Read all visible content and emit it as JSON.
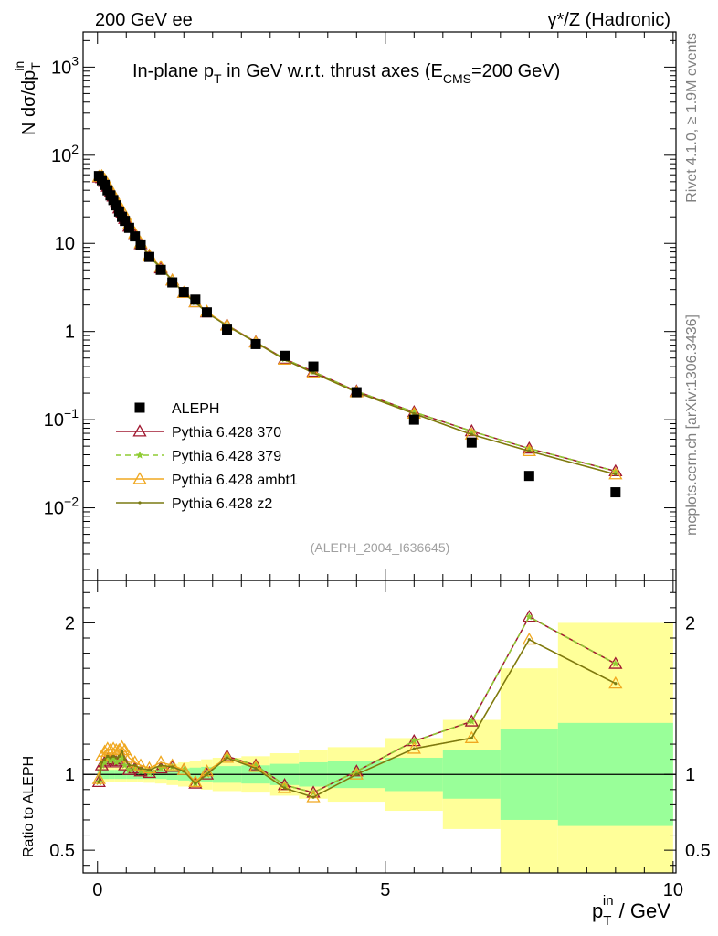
{
  "header": {
    "left_title": "200 GeV ee",
    "right_title": "γ*/Z (Hadronic)"
  },
  "side_labels": {
    "rivet": "Rivet 4.1.0, ≥ 1.9M events",
    "mcplots": "mcplots.cern.ch [arXiv:1306.3436]"
  },
  "chart_data": [
    {
      "id": "main",
      "type": "line",
      "title": "In-plane p_T in GeV w.r.t. thrust axes (E_CMS=200 GeV)",
      "title_parts": {
        "a": "In-plane p",
        "a_sub": "T",
        "b": " in GeV w.r.t. thrust axes (E",
        "b_sub": "CMS",
        "c": "=200 GeV)"
      },
      "ylabel": "N dσ/dp_T^in",
      "ylabel_parts": {
        "main": "N  dσ/dp",
        "sub": "T",
        "sup": "in"
      },
      "yscale": "log",
      "ylim": [
        0.0015,
        2500
      ],
      "xlim": [
        -0.25,
        10.05
      ],
      "yticks": [
        {
          "v": 1000,
          "base": "10",
          "exp": "3"
        },
        {
          "v": 100,
          "base": "10",
          "exp": "2"
        },
        {
          "v": 10,
          "base": "10",
          "exp": ""
        },
        {
          "v": 1,
          "base": "1",
          "exp": ""
        },
        {
          "v": 0.1,
          "base": "10",
          "exp": "−1"
        },
        {
          "v": 0.01,
          "base": "10",
          "exp": "−2"
        }
      ],
      "watermark": "(ALEPH_2004_I636645)",
      "x": [
        0.025,
        0.075,
        0.125,
        0.175,
        0.225,
        0.275,
        0.325,
        0.375,
        0.425,
        0.475,
        0.55,
        0.65,
        0.75,
        0.9,
        1.1,
        1.3,
        1.5,
        1.7,
        1.9,
        2.25,
        2.75,
        3.25,
        3.75,
        4.5,
        5.5,
        6.5,
        7.5,
        9.0
      ],
      "series": [
        {
          "name": "ALEPH",
          "values": [
            58,
            52,
            46,
            40,
            35,
            31,
            27,
            23,
            20,
            18,
            15,
            12,
            9.5,
            7.0,
            5.0,
            3.6,
            2.8,
            2.3,
            1.65,
            1.05,
            0.72,
            0.53,
            0.4,
            0.205,
            0.1,
            0.055,
            0.023,
            0.015
          ],
          "yerr_rel": 0.05
        },
        {
          "name": "Pythia 6.428 370",
          "values": [
            56,
            55,
            50,
            44,
            38,
            34,
            29,
            25,
            22,
            19,
            15.5,
            12.5,
            9.8,
            7.1,
            5.2,
            3.8,
            2.75,
            2.15,
            1.65,
            1.18,
            0.76,
            0.49,
            0.35,
            0.21,
            0.122,
            0.074,
            0.047,
            0.026
          ]
        },
        {
          "name": "Pythia 6.428 379",
          "values": [
            56,
            55,
            50,
            44,
            38,
            34,
            29,
            25,
            22,
            19,
            15.5,
            12.5,
            9.8,
            7.1,
            5.2,
            3.8,
            2.75,
            2.15,
            1.65,
            1.18,
            0.76,
            0.49,
            0.35,
            0.21,
            0.122,
            0.074,
            0.047,
            0.026
          ]
        },
        {
          "name": "Pythia 6.428 ambt1",
          "values": [
            57,
            58,
            53,
            47,
            41,
            36,
            31,
            27,
            24,
            21,
            16.5,
            13.0,
            10.1,
            7.3,
            5.4,
            3.8,
            2.75,
            2.15,
            1.68,
            1.17,
            0.75,
            0.48,
            0.34,
            0.205,
            0.117,
            0.068,
            0.044,
            0.024
          ]
        },
        {
          "name": "Pythia 6.428 z2",
          "values": [
            55,
            56,
            51,
            45,
            39,
            35,
            30,
            26,
            23,
            20,
            16.0,
            12.7,
            9.9,
            7.2,
            5.3,
            3.8,
            2.7,
            2.13,
            1.63,
            1.16,
            0.75,
            0.48,
            0.34,
            0.205,
            0.117,
            0.068,
            0.044,
            0.024
          ]
        }
      ]
    },
    {
      "id": "ratio",
      "type": "line",
      "ylabel": "Ratio to ALEPH",
      "xlabel": "p_T^in / GeV",
      "xlabel_parts": {
        "main": "p",
        "sub": "T",
        "sup": "in",
        "rest": " / GeV"
      },
      "ylim": [
        0.35,
        2.28
      ],
      "xlim": [
        -0.25,
        10.05
      ],
      "yticks": [
        {
          "v": 2,
          "label": "2"
        },
        {
          "v": 1,
          "label": "1"
        },
        {
          "v": 0.5,
          "label": "0.5"
        }
      ],
      "xticks": [
        {
          "v": 0,
          "label": "0"
        },
        {
          "v": 5,
          "label": "5"
        },
        {
          "v": 10,
          "label": "10"
        }
      ],
      "reference_line": 1,
      "bands": {
        "edges": [
          0.0,
          0.1,
          0.2,
          0.3,
          0.4,
          0.5,
          0.6,
          0.7,
          0.8,
          1.0,
          1.2,
          1.4,
          1.6,
          1.8,
          2.0,
          2.5,
          3.0,
          3.5,
          4.0,
          5.0,
          6.0,
          7.0,
          8.0,
          10.0
        ],
        "stat": [
          0.03,
          0.03,
          0.03,
          0.03,
          0.03,
          0.03,
          0.03,
          0.03,
          0.03,
          0.03,
          0.035,
          0.04,
          0.045,
          0.05,
          0.055,
          0.06,
          0.07,
          0.08,
          0.09,
          0.11,
          0.16,
          0.3,
          0.34
        ],
        "total": [
          0.05,
          0.05,
          0.05,
          0.05,
          0.05,
          0.05,
          0.05,
          0.05,
          0.055,
          0.06,
          0.07,
          0.08,
          0.09,
          0.1,
          0.11,
          0.12,
          0.14,
          0.16,
          0.18,
          0.24,
          0.36,
          0.7,
          1.0
        ]
      },
      "series": [
        {
          "name": "Pythia 6.428 370",
          "values": [
            0.95,
            1.06,
            1.08,
            1.1,
            1.09,
            1.1,
            1.08,
            1.09,
            1.11,
            1.06,
            1.03,
            1.04,
            1.02,
            1.01,
            1.04,
            1.05,
            1.03,
            0.94,
            1.0,
            1.12,
            1.06,
            0.93,
            0.88,
            1.02,
            1.22,
            1.35,
            2.04,
            1.73
          ]
        },
        {
          "name": "Pythia 6.428 379",
          "values": [
            0.95,
            1.06,
            1.08,
            1.1,
            1.09,
            1.1,
            1.08,
            1.09,
            1.11,
            1.06,
            1.03,
            1.04,
            1.02,
            1.01,
            1.04,
            1.05,
            1.03,
            0.94,
            1.0,
            1.12,
            1.06,
            0.93,
            0.88,
            1.02,
            1.22,
            1.35,
            2.04,
            1.73
          ]
        },
        {
          "name": "Pythia 6.428 ambt1",
          "values": [
            0.97,
            1.12,
            1.15,
            1.17,
            1.16,
            1.17,
            1.16,
            1.16,
            1.18,
            1.16,
            1.11,
            1.08,
            1.06,
            1.04,
            1.08,
            1.06,
            1.03,
            0.95,
            1.02,
            1.11,
            1.05,
            0.91,
            0.85,
            1.0,
            1.17,
            1.24,
            1.89,
            1.6
          ]
        },
        {
          "name": "Pythia 6.428 z2",
          "values": [
            0.95,
            1.08,
            1.1,
            1.12,
            1.11,
            1.12,
            1.11,
            1.12,
            1.15,
            1.1,
            1.06,
            1.06,
            1.04,
            1.03,
            1.06,
            1.05,
            1.02,
            0.94,
            1.0,
            1.11,
            1.04,
            0.91,
            0.85,
            1.0,
            1.17,
            1.24,
            1.89,
            1.6
          ]
        }
      ]
    }
  ],
  "styles": {
    "ALEPH": {
      "color": "#000000",
      "marker": "square"
    },
    "Pythia 6.428 370": {
      "color": "#a01830",
      "marker": "triangle-open",
      "dash": ""
    },
    "Pythia 6.428 379": {
      "color": "#8fcc33",
      "marker": "star",
      "dash": "6,4"
    },
    "Pythia 6.428 ambt1": {
      "color": "#f0a820",
      "marker": "triangle-open",
      "dash": ""
    },
    "Pythia 6.428 z2": {
      "color": "#7a7a12",
      "marker": "dot",
      "dash": ""
    },
    "band_stat": "#99ff99",
    "band_total": "#ffff99"
  }
}
